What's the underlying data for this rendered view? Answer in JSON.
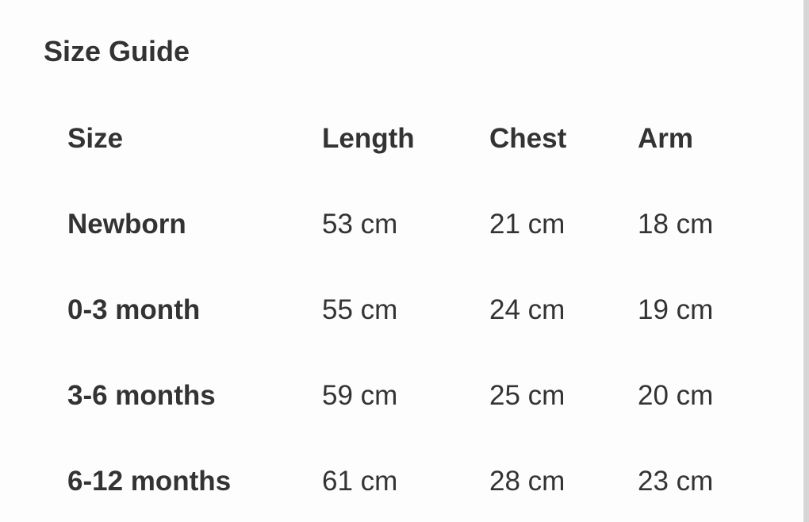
{
  "title": "Size Guide",
  "table": {
    "headers": [
      "Size",
      "Length",
      "Chest",
      "Arm"
    ],
    "rows": [
      [
        "Newborn",
        "53 cm",
        "21 cm",
        "18 cm"
      ],
      [
        "0-3 month",
        "55 cm",
        "24 cm",
        "19 cm"
      ],
      [
        "3-6 months",
        "59 cm",
        "25 cm",
        "20 cm"
      ],
      [
        "6-12 months",
        "61 cm",
        "28 cm",
        "23 cm"
      ]
    ]
  }
}
